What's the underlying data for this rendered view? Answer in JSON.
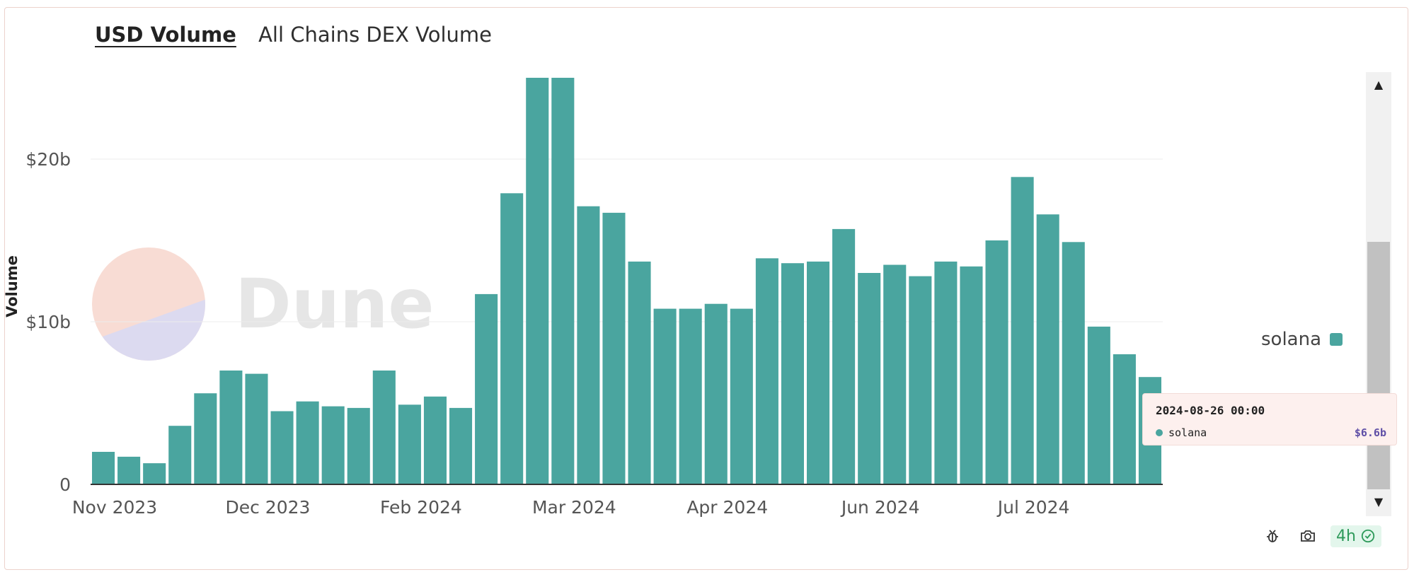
{
  "tabs": {
    "active": "USD Volume",
    "inactive": "All Chains DEX Volume"
  },
  "watermark": {
    "text": "Dune",
    "colors": [
      "#f8dcd4",
      "#dcdaf0"
    ]
  },
  "legend": {
    "label": "solana",
    "color": "#4aa59f"
  },
  "tooltip": {
    "date": "2024-08-26 00:00",
    "series": "solana",
    "value": "$6.6b"
  },
  "toolbar": {
    "refresh_label": "4h",
    "icons": [
      "bug-icon",
      "camera-icon",
      "check-circle-icon"
    ]
  },
  "chart_data": {
    "type": "bar",
    "title": "USD Volume",
    "ylabel": "Volume",
    "xlabel": "",
    "ylim": [
      0,
      25
    ],
    "yticks": [
      {
        "value": 0,
        "label": "0"
      },
      {
        "value": 10,
        "label": "$10b"
      },
      {
        "value": 20,
        "label": "$20b"
      }
    ],
    "xticks": [
      {
        "index": 0,
        "label": "Nov 2023"
      },
      {
        "index": 6,
        "label": "Dec 2023"
      },
      {
        "index": 12,
        "label": "Feb 2024"
      },
      {
        "index": 18,
        "label": "Mar 2024"
      },
      {
        "index": 24,
        "label": "Apr 2024"
      },
      {
        "index": 30,
        "label": "Jun 2024"
      },
      {
        "index": 36,
        "label": "Jul 2024"
      }
    ],
    "series": [
      {
        "name": "solana",
        "color": "#4aa59f",
        "values": [
          2.0,
          1.7,
          1.3,
          3.6,
          5.6,
          7.0,
          6.8,
          4.5,
          5.1,
          4.8,
          4.7,
          7.0,
          4.9,
          5.4,
          4.7,
          11.7,
          17.9,
          25.0,
          25.0,
          17.1,
          16.7,
          13.7,
          10.8,
          10.8,
          11.1,
          10.8,
          13.9,
          13.6,
          13.7,
          15.7,
          13.0,
          13.5,
          12.8,
          13.7,
          13.4,
          15.0,
          18.9,
          16.6,
          14.9,
          9.7,
          8.0,
          6.6
        ]
      }
    ],
    "grid": true,
    "legend_position": "right"
  }
}
